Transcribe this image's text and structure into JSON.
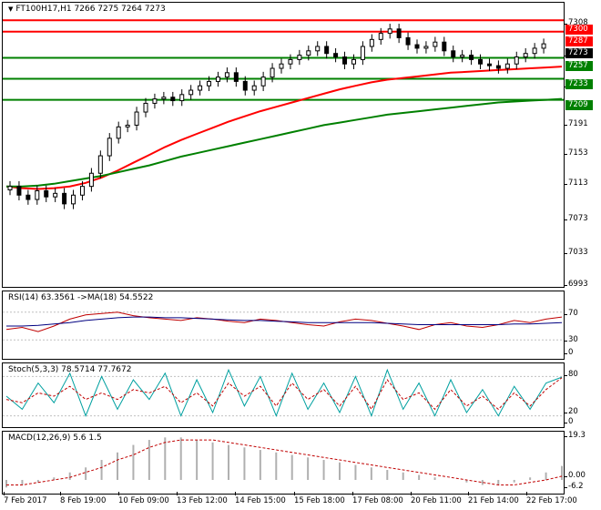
{
  "main": {
    "icon": "dropdown-arrow-icon",
    "header": "FT100H17,H1  7266 7275 7264 7273",
    "yticks": [
      "7308",
      "7273",
      "7233",
      "7191",
      "7153",
      "7113",
      "7073",
      "7033",
      "6993"
    ],
    "price_tags": [
      {
        "label": "7300",
        "color": "#ff0000",
        "text_color": "#ffffff"
      },
      {
        "label": "7287",
        "color": "#ff0000",
        "text_color": "#ffffff"
      },
      {
        "label": "7273",
        "color": "#000000",
        "text_color": "#ffffff"
      },
      {
        "label": "7257",
        "color": "#008000",
        "text_color": "#ffffff"
      },
      {
        "label": "7233",
        "color": "#008000",
        "text_color": "#ffffff"
      },
      {
        "label": "7209",
        "color": "#008000",
        "text_color": "#ffffff"
      }
    ]
  },
  "rsi": {
    "header": "RSI(14) 63.3561  ->MA(18) 54.5522",
    "levels": [
      "70",
      "30",
      "0"
    ]
  },
  "stoch": {
    "header": "Stoch(5,3,3) 78.5714 77.7672",
    "levels": [
      "80",
      "20",
      "0"
    ]
  },
  "macd": {
    "header": "MACD(12,26,9) 5.6 1.5",
    "levels": [
      "19.3",
      "0.00",
      "-6.2"
    ]
  },
  "xaxis": [
    "7 Feb 2017",
    "8 Feb 19:00",
    "10 Feb 09:00",
    "13 Feb 12:00",
    "14 Feb 15:00",
    "15 Feb 18:00",
    "17 Feb 08:00",
    "20 Feb 11:00",
    "21 Feb 14:00",
    "22 Feb 17:00"
  ],
  "colors": {
    "resistance": "#ff0000",
    "support": "#008000",
    "bull": "#000000",
    "bear": "#000000",
    "rsi": "#c00000",
    "rsi_ma": "#000080",
    "stoch_main": "#00a0a0",
    "stoch_signal": "#c00000",
    "macd_hist": "#b0b0b0",
    "macd_signal": "#c00000"
  },
  "chart_data": [
    {
      "type": "candlestick",
      "title": "FT100H17,H1",
      "ohlc_last": {
        "open": 7266,
        "high": 7275,
        "low": 7264,
        "close": 7273
      },
      "ylim": [
        6993,
        7320
      ],
      "levels": {
        "resistance": [
          7300,
          7287
        ],
        "support": [
          7257,
          7233,
          7209
        ]
      },
      "close_series": [
        7110,
        7100,
        7095,
        7105,
        7098,
        7102,
        7090,
        7100,
        7110,
        7125,
        7145,
        7165,
        7178,
        7180,
        7195,
        7205,
        7210,
        7212,
        7208,
        7215,
        7220,
        7225,
        7230,
        7235,
        7240,
        7230,
        7220,
        7225,
        7235,
        7245,
        7250,
        7255,
        7260,
        7265,
        7270,
        7262,
        7258,
        7250,
        7255,
        7270,
        7278,
        7285,
        7290,
        7280,
        7272,
        7268,
        7270,
        7275,
        7265,
        7258,
        7260,
        7255,
        7250,
        7248,
        7245,
        7250,
        7258,
        7262,
        7268,
        7273
      ],
      "moving_averages": [
        {
          "color": "#ff0000",
          "values": [
            7110,
            7108,
            7107,
            7108,
            7110,
            7114,
            7120,
            7128,
            7137,
            7146,
            7155,
            7163,
            7170,
            7177,
            7184,
            7190,
            7196,
            7201,
            7206,
            7211,
            7216,
            7221,
            7225,
            7229,
            7232,
            7234,
            7236,
            7238,
            7240,
            7241,
            7242,
            7243,
            7244,
            7245,
            7246,
            7247
          ]
        },
        {
          "color": "#008000",
          "values": [
            7110,
            7110,
            7111,
            7113,
            7116,
            7119,
            7122,
            7126,
            7130,
            7134,
            7139,
            7144,
            7148,
            7152,
            7156,
            7160,
            7164,
            7168,
            7172,
            7176,
            7180,
            7183,
            7186,
            7189,
            7192,
            7194,
            7196,
            7198,
            7200,
            7202,
            7204,
            7206,
            7207,
            7208,
            7209,
            7210
          ]
        }
      ]
    },
    {
      "type": "line",
      "title": "RSI(14)",
      "ylim": [
        0,
        100
      ],
      "levels": [
        70,
        30
      ],
      "series": [
        {
          "name": "RSI",
          "values": [
            45,
            48,
            42,
            50,
            60,
            66,
            68,
            70,
            65,
            62,
            60,
            58,
            62,
            60,
            57,
            55,
            60,
            58,
            55,
            52,
            50,
            56,
            60,
            58,
            54,
            50,
            45,
            52,
            55,
            50,
            48,
            52,
            58,
            55,
            60,
            63
          ]
        },
        {
          "name": "MA",
          "values": [
            50,
            50,
            51,
            53,
            55,
            58,
            60,
            62,
            63,
            63,
            62,
            62,
            61,
            60,
            59,
            58,
            58,
            57,
            56,
            55,
            55,
            55,
            55,
            55,
            54,
            53,
            52,
            52,
            52,
            52,
            52,
            52,
            53,
            53,
            54,
            55
          ]
        }
      ]
    },
    {
      "type": "line",
      "title": "Stoch(5,3,3)",
      "ylim": [
        0,
        100
      ],
      "levels": [
        80,
        20
      ],
      "series": [
        {
          "name": "main",
          "values": [
            50,
            30,
            70,
            40,
            85,
            20,
            80,
            30,
            75,
            45,
            85,
            20,
            75,
            25,
            90,
            35,
            80,
            20,
            85,
            30,
            70,
            25,
            80,
            20,
            90,
            30,
            70,
            20,
            75,
            25,
            60,
            20,
            65,
            30,
            70,
            79
          ]
        },
        {
          "name": "signal",
          "values": [
            45,
            40,
            55,
            50,
            65,
            45,
            55,
            45,
            60,
            55,
            65,
            40,
            55,
            35,
            70,
            50,
            65,
            35,
            70,
            45,
            60,
            35,
            65,
            30,
            75,
            45,
            55,
            30,
            60,
            35,
            50,
            30,
            55,
            35,
            60,
            78
          ]
        }
      ]
    },
    {
      "type": "bar",
      "title": "MACD(12,26,9)",
      "ylim": [
        -6.2,
        19.3
      ],
      "values": [
        -3,
        -2,
        -1,
        1,
        3,
        5,
        8,
        11,
        14,
        16,
        17,
        17,
        16,
        15,
        14,
        13,
        12,
        11,
        10,
        9,
        8,
        7,
        6,
        5,
        4,
        3,
        2,
        1,
        0,
        -1,
        -2,
        -2,
        -1,
        1,
        3,
        5.6
      ],
      "signal": [
        -2,
        -2,
        -1,
        0,
        1,
        3,
        5,
        8,
        10,
        13,
        15,
        16,
        16,
        16,
        15,
        14,
        13,
        12,
        11,
        10,
        9,
        8,
        7,
        6,
        5,
        4,
        3,
        2,
        1,
        0,
        -1,
        -2,
        -2,
        -1,
        0,
        1.5
      ]
    }
  ]
}
